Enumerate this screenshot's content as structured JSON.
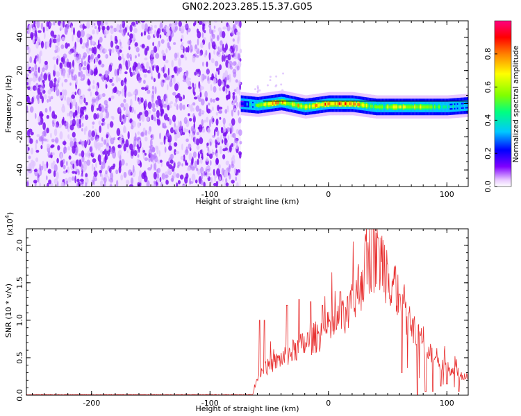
{
  "title": "GN02.2023.285.15.37.G05",
  "chart_data": [
    {
      "type": "heatmap",
      "xlabel": "Height of straight line (km)",
      "ylabel": "Frequency (Hz)",
      "xlim": [
        -255,
        118
      ],
      "ylim": [
        -50,
        50
      ],
      "x_ticks": [
        -200,
        -100,
        0,
        100
      ],
      "x_tick_labels": [
        "-200",
        "-100",
        "0",
        "100"
      ],
      "y_ticks": [
        40,
        20,
        0,
        -20,
        -40
      ],
      "y_tick_labels": [
        "40",
        "20",
        "0",
        "-20",
        "-40"
      ],
      "colorbar": {
        "label": "Normalized spectral amplitude",
        "range": [
          0.0,
          1.0
        ],
        "ticks": [
          0.0,
          0.2,
          0.4,
          0.6,
          0.8
        ],
        "tick_labels": [
          "0.0",
          "0.2",
          "0.4",
          "0.6",
          "0.8"
        ],
        "colors": [
          "#ffffff",
          "#e8c8ff",
          "#8000ff",
          "#0000ff",
          "#00c0ff",
          "#00ff80",
          "#80ff00",
          "#ffff00",
          "#ff8000",
          "#ff0000",
          "#ff0080"
        ]
      },
      "noise_region_x": [
        -255,
        -74
      ],
      "signal_center_freq": [
        [
          -74,
          0
        ],
        [
          -60,
          -1
        ],
        [
          -40,
          1
        ],
        [
          -20,
          -2
        ],
        [
          0,
          0
        ],
        [
          20,
          0
        ],
        [
          40,
          -2
        ],
        [
          60,
          -2
        ],
        [
          80,
          -2
        ],
        [
          100,
          -2
        ],
        [
          118,
          -1
        ]
      ],
      "signal_amplitude": [
        [
          -74,
          0.3
        ],
        [
          -60,
          0.6
        ],
        [
          -50,
          0.85
        ],
        [
          -40,
          0.8
        ],
        [
          -20,
          0.75
        ],
        [
          0,
          0.95
        ],
        [
          20,
          0.9
        ],
        [
          40,
          0.6
        ],
        [
          60,
          0.8
        ],
        [
          80,
          0.7
        ],
        [
          100,
          0.5
        ],
        [
          118,
          0.4
        ]
      ],
      "grid": false
    },
    {
      "type": "line",
      "xlabel": "Height of straight line (km)",
      "ylabel": "SNR (10 * v/v)",
      "y_multiplier_label": "(x10",
      "y_multiplier_exp": "4",
      "y_multiplier_close": ")",
      "xlim": [
        -255,
        118
      ],
      "ylim": [
        0,
        2.22
      ],
      "x_ticks": [
        -200,
        -100,
        0,
        100
      ],
      "x_tick_labels": [
        "-200",
        "-100",
        "0",
        "100"
      ],
      "y_ticks": [
        0.0,
        0.5,
        1.0,
        1.5,
        2.0
      ],
      "y_tick_labels": [
        "0.0",
        "0.5",
        "1.0",
        "1.5",
        "2.0"
      ],
      "line_color": "#e83030",
      "series": [
        {
          "x": [
            -255,
            -240,
            -220,
            -200,
            -180,
            -160,
            -140,
            -120,
            -100,
            -80,
            -64,
            -62,
            -58,
            -55,
            -50,
            -45,
            -40,
            -35,
            -30,
            -25,
            -20,
            -15,
            -10,
            -5,
            0,
            5,
            10,
            15,
            20,
            25,
            30,
            35,
            40,
            45,
            50,
            55,
            60,
            65,
            70,
            75,
            80,
            85,
            90,
            95,
            100,
            105,
            110,
            118
          ],
          "values": [
            0.0,
            0.0,
            0.0,
            0.0,
            0.0,
            0.0,
            0.0,
            0.0,
            0.0,
            0.0,
            0.0,
            0.15,
            0.3,
            0.35,
            0.4,
            0.45,
            0.5,
            0.55,
            0.6,
            0.65,
            0.7,
            0.75,
            0.8,
            0.85,
            0.9,
            0.95,
            1.0,
            1.05,
            1.2,
            1.45,
            1.7,
            1.9,
            1.95,
            1.85,
            1.7,
            1.55,
            1.35,
            1.15,
            0.95,
            0.8,
            0.7,
            0.6,
            0.55,
            0.45,
            0.4,
            0.35,
            0.3,
            0.25
          ],
          "spikes": [
            [
              -58,
              1.0
            ],
            [
              -54,
              1.0
            ],
            [
              -35,
              1.2
            ],
            [
              -25,
              1.28
            ],
            [
              -15,
              1.25
            ],
            [
              -5,
              1.2
            ],
            [
              10,
              1.38
            ],
            [
              20,
              1.4
            ],
            [
              32,
              2.05
            ],
            [
              37,
              2.22
            ],
            [
              42,
              2.1
            ],
            [
              50,
              1.75
            ],
            [
              60,
              1.35
            ],
            [
              68,
              1.1
            ]
          ],
          "dips": [
            [
              62,
              0.3
            ],
            [
              75,
              0.0
            ],
            [
              82,
              0.05
            ],
            [
              88,
              0.05
            ],
            [
              95,
              0.12
            ],
            [
              100,
              0.15
            ],
            [
              110,
              0.05
            ]
          ]
        }
      ],
      "grid": false
    }
  ]
}
